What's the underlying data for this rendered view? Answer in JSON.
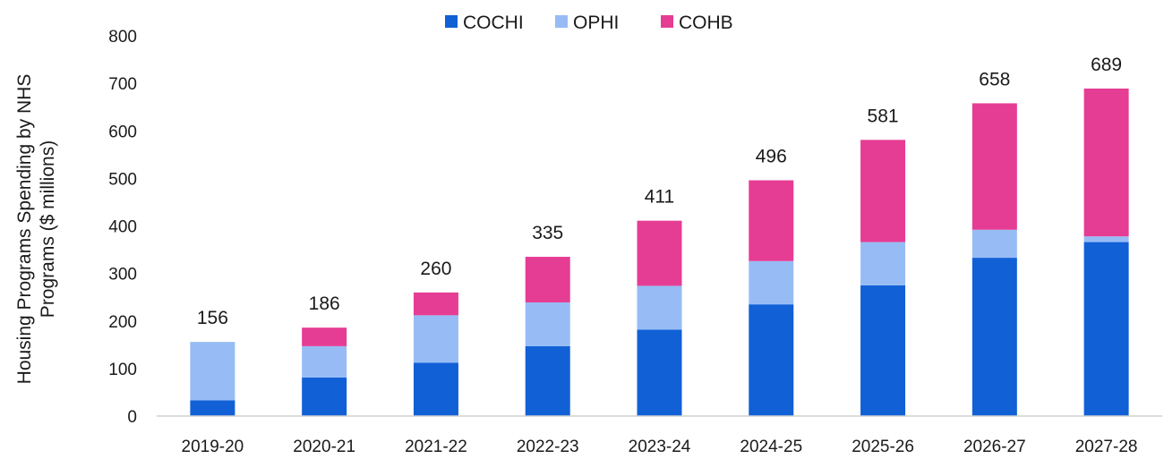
{
  "chart_data": {
    "type": "bar",
    "stacked": true,
    "categories": [
      "2019-20",
      "2020-21",
      "2021-22",
      "2022-23",
      "2023-24",
      "2024-25",
      "2025-26",
      "2026-27",
      "2027-28"
    ],
    "series": [
      {
        "name": "COCHI",
        "color": "#1160d6",
        "values": [
          33,
          81,
          112,
          147,
          182,
          235,
          275,
          333,
          366
        ]
      },
      {
        "name": "OPHI",
        "color": "#97bcf5",
        "values": [
          123,
          66,
          100,
          92,
          92,
          91,
          91,
          59,
          12
        ]
      },
      {
        "name": "COHB",
        "color": "#e63d94",
        "values": [
          0,
          39,
          48,
          96,
          137,
          170,
          215,
          266,
          311
        ]
      }
    ],
    "totals": [
      "156",
      "186",
      "260",
      "335",
      "411",
      "496",
      "581",
      "658",
      "689"
    ],
    "ylabel_lines": [
      "Housing Programs Spending by NHS",
      "Programs ($ millions)"
    ],
    "ylim": [
      0,
      800
    ],
    "yticks": [
      "0",
      "100",
      "200",
      "300",
      "400",
      "500",
      "600",
      "700",
      "800"
    ],
    "grid": false,
    "legend_position": "top-center"
  }
}
